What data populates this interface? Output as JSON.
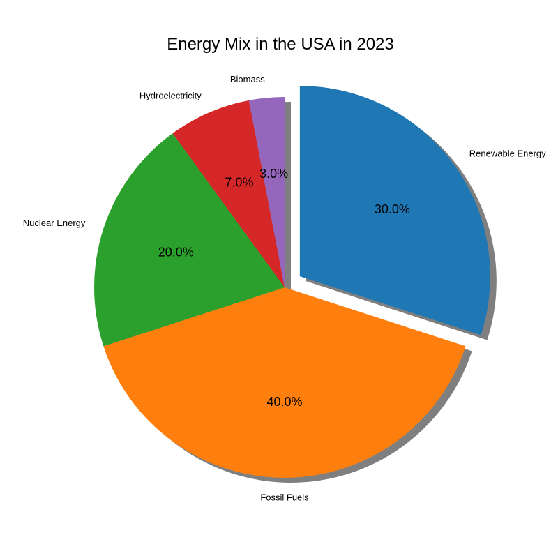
{
  "chart_data": {
    "type": "pie",
    "title": "Energy Mix in the USA in 2023",
    "slices": [
      {
        "label": "Renewable Energy",
        "value": 30.0,
        "pct_label": "30.0%",
        "color": "#1f77b4",
        "exploded": true
      },
      {
        "label": "Fossil Fuels",
        "value": 40.0,
        "pct_label": "40.0%",
        "color": "#ff7f0e",
        "exploded": false
      },
      {
        "label": "Nuclear Energy",
        "value": 20.0,
        "pct_label": "20.0%",
        "color": "#2ca02c",
        "exploded": false
      },
      {
        "label": "Hydroelectricity",
        "value": 7.0,
        "pct_label": "7.0%",
        "color": "#d62728",
        "exploded": false
      },
      {
        "label": "Biomass",
        "value": 3.0,
        "pct_label": "3.0%",
        "color": "#9467bd",
        "exploded": false
      }
    ],
    "start_angle_deg": 90,
    "direction": "clockwise",
    "shadow": true,
    "legend": false
  }
}
